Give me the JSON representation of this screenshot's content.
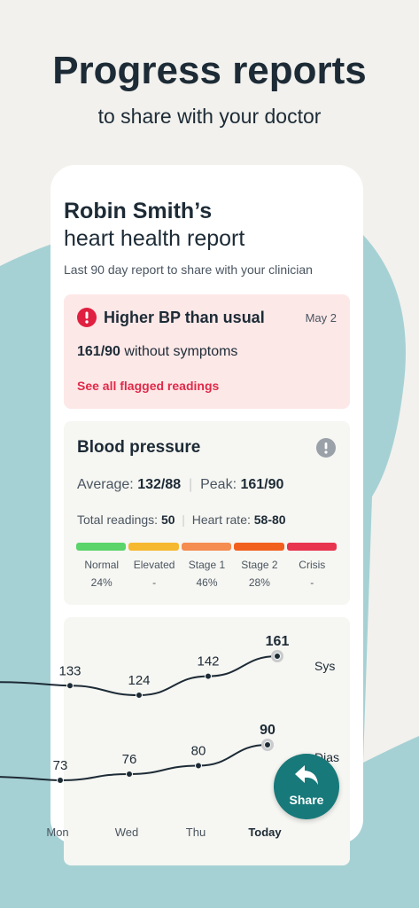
{
  "header": {
    "title": "Progress reports",
    "subtitle": "to share with your doctor"
  },
  "report": {
    "name": "Robin Smith’s",
    "title": "heart health report",
    "subtitle": "Last 90 day report to share with your clinician"
  },
  "alert": {
    "title": "Higher BP than usual",
    "date": "May 2",
    "reading": "161/90",
    "reading_note": "without symptoms",
    "link": "See all flagged readings"
  },
  "blood_pressure": {
    "title": "Blood pressure",
    "average_label": "Average:",
    "average": "132/88",
    "peak_label": "Peak:",
    "peak": "161/90",
    "total_label": "Total readings:",
    "total": "50",
    "heart_rate_label": "Heart rate:",
    "heart_rate": "58-80",
    "stages": [
      {
        "name": "Normal",
        "share": "24%",
        "color": "#5bd46a"
      },
      {
        "name": "Elevated",
        "share": "-",
        "color": "#f5b82e"
      },
      {
        "name": "Stage 1",
        "share": "46%",
        "color": "#f58c50"
      },
      {
        "name": "Stage 2",
        "share": "28%",
        "color": "#f2601e"
      },
      {
        "name": "Crisis",
        "share": "-",
        "color": "#e8344e"
      }
    ]
  },
  "trend": {
    "categories": [
      "Mon",
      "Wed",
      "Thu",
      "Today"
    ],
    "series": [
      {
        "name": "Sys",
        "color": "#1d2b36",
        "values": [
          133,
          124,
          142,
          161
        ]
      },
      {
        "name": "Dias",
        "color": "#1d2b36",
        "values": [
          73,
          76,
          80,
          90
        ]
      }
    ]
  },
  "share_button": {
    "label": "Share"
  }
}
